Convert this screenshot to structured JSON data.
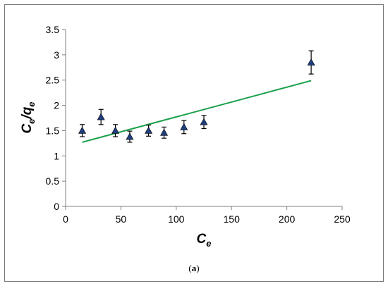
{
  "chart_data": {
    "type": "scatter",
    "xlabel": {
      "main": "C",
      "sub": "e"
    },
    "ylabel": {
      "main1": "C",
      "sub1": "e",
      "slash": "/",
      "main2": "q",
      "sub2": "e"
    },
    "xlim": [
      0,
      250
    ],
    "ylim": [
      0,
      3.5
    ],
    "xticks": [
      "0",
      "50",
      "100",
      "150",
      "200",
      "250"
    ],
    "yticks": [
      "0",
      "0.5",
      "1",
      "1.5",
      "2",
      "2.5",
      "3",
      "3.5"
    ],
    "grid": false,
    "legend": "none",
    "series": [
      {
        "kind": "points",
        "marker": "triangle",
        "color": "#1f3f80",
        "x": [
          15,
          32,
          45,
          58,
          75,
          89,
          107,
          125,
          222
        ],
        "y": [
          1.5,
          1.77,
          1.5,
          1.38,
          1.5,
          1.46,
          1.57,
          1.67,
          2.85
        ],
        "error": [
          0.12,
          0.15,
          0.12,
          0.11,
          0.11,
          0.11,
          0.13,
          0.13,
          0.23
        ]
      },
      {
        "kind": "fit-line",
        "color": "#1aa04a",
        "x": [
          15,
          222
        ],
        "y": [
          1.27,
          2.49
        ]
      }
    ]
  },
  "caption": {
    "open": "(",
    "label": "a",
    "close": ")"
  }
}
